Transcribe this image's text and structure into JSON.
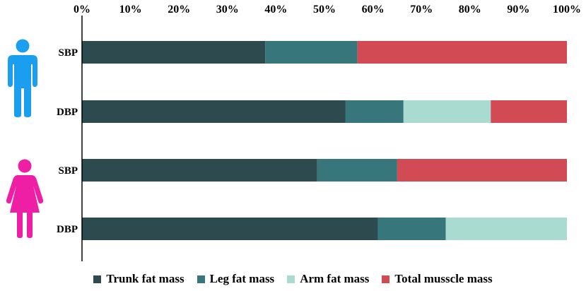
{
  "chart_data": {
    "type": "bar",
    "orientation": "horizontal",
    "stacked": true,
    "x_ticks": [
      "0%",
      "10%",
      "20%",
      "30%",
      "40%",
      "50%",
      "60%",
      "70%",
      "80%",
      "90%",
      "100%"
    ],
    "xlim": [
      0,
      100
    ],
    "groups": [
      {
        "name": "male",
        "icon": "male-person-icon",
        "icon_color": "#1a9ff0"
      },
      {
        "name": "female",
        "icon": "female-person-icon",
        "icon_color": "#ef1fa5"
      }
    ],
    "categories": [
      "SBP",
      "DBP",
      "SBP",
      "DBP"
    ],
    "category_groups": [
      "male",
      "male",
      "female",
      "female"
    ],
    "series": [
      {
        "name": "Trunk fat mass",
        "color": "#2d4a4f",
        "values": [
          37.8,
          54.3,
          48.5,
          61.0
        ]
      },
      {
        "name": "Leg fat mass",
        "color": "#37767a",
        "values": [
          19.0,
          12.0,
          16.5,
          14.0
        ]
      },
      {
        "name": "Arm fat mass",
        "color": "#a9dbd0",
        "values": [
          0,
          18.0,
          0,
          25.0
        ]
      },
      {
        "name": "Total musscle mass",
        "color": "#d24b54",
        "values": [
          43.2,
          15.7,
          35.0,
          0
        ]
      }
    ]
  }
}
